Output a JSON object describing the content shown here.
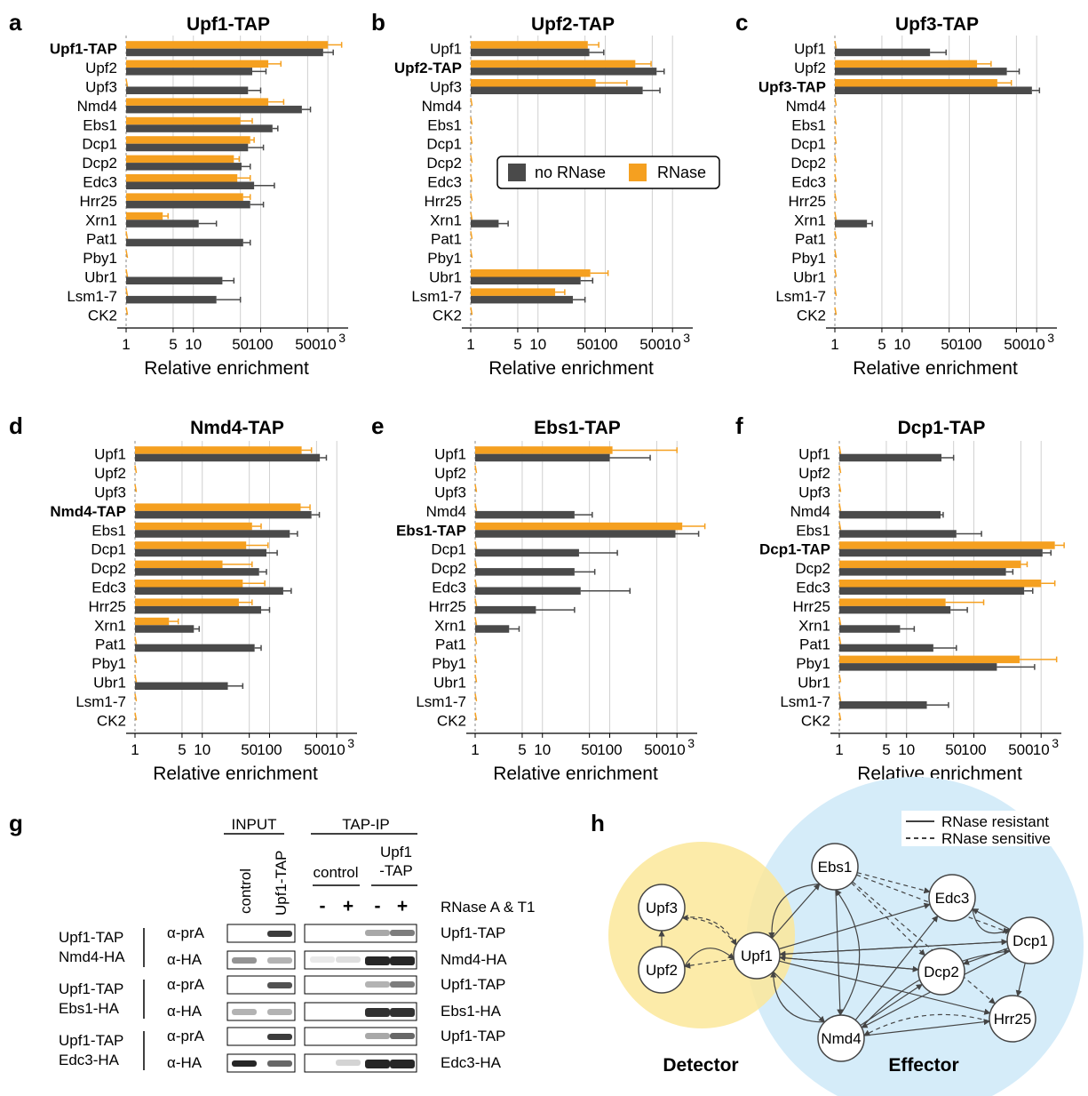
{
  "colors": {
    "noRNase": "#4a4a4a",
    "RNase": "#f5a020",
    "detector": "#fce79a",
    "effector": "#d5ecf9"
  },
  "panels": [
    {
      "letter": "a",
      "title": "Upf1-TAP",
      "bait": 0,
      "xlabel": "Relative enrichment",
      "rnase": [
        1000,
        130,
        0,
        130,
        50,
        70,
        40,
        45,
        55,
        3.5,
        0,
        0,
        0,
        0,
        0
      ],
      "rnaseErr": [
        1600,
        200,
        0,
        220,
        75,
        80,
        48,
        70,
        70,
        4.2,
        0,
        0,
        0,
        0,
        0
      ],
      "norase": [
        850,
        75,
        65,
        410,
        150,
        65,
        52,
        80,
        70,
        12,
        55,
        0,
        27,
        22,
        0
      ],
      "noraseErr": [
        1200,
        120,
        100,
        550,
        180,
        110,
        70,
        160,
        110,
        22,
        70,
        0,
        40,
        50,
        0
      ]
    },
    {
      "letter": "b",
      "title": "Upf2-TAP",
      "bait": 1,
      "xlabel": "Relative enrichment",
      "rnase": [
        55,
        280,
        72,
        0,
        0,
        0,
        0,
        0,
        0,
        0,
        0,
        0,
        60,
        18,
        0
      ],
      "rnaseErr": [
        80,
        480,
        210,
        0,
        0,
        0,
        0,
        0,
        0,
        0,
        0,
        0,
        110,
        25,
        0
      ],
      "norase": [
        58,
        580,
        360,
        0,
        0,
        0,
        0,
        0,
        0,
        2.6,
        0,
        0,
        43,
        33,
        0
      ],
      "noraseErr": [
        95,
        750,
        650,
        0,
        0,
        0,
        0,
        0,
        0,
        3.6,
        0,
        0,
        65,
        50,
        0
      ]
    },
    {
      "letter": "c",
      "title": "Upf3-TAP",
      "bait": 2,
      "xlabel": "Relative enrichment",
      "rnase": [
        0,
        130,
        260,
        0,
        0,
        0,
        0,
        0,
        0,
        0,
        0,
        0,
        0,
        0,
        0
      ],
      "rnaseErr": [
        0,
        210,
        420,
        0,
        0,
        0,
        0,
        0,
        0,
        0,
        0,
        0,
        0,
        0,
        0
      ],
      "norase": [
        26,
        360,
        850,
        0,
        0,
        0,
        0,
        0,
        0,
        3.0,
        0,
        0,
        0,
        0,
        0
      ],
      "noraseErr": [
        45,
        550,
        1100,
        0,
        0,
        0,
        0,
        0,
        0,
        3.6,
        0,
        0,
        0,
        0,
        0
      ]
    },
    {
      "letter": "d",
      "title": "Nmd4-TAP",
      "bait": 3,
      "xlabel": "Relative enrichment",
      "rnase": [
        300,
        0,
        0,
        290,
        55,
        45,
        20,
        40,
        35,
        3.2,
        0,
        0,
        0,
        0,
        0
      ],
      "rnaseErr": [
        420,
        0,
        0,
        400,
        75,
        95,
        55,
        85,
        55,
        4.4,
        0,
        0,
        0,
        0,
        0
      ],
      "norase": [
        560,
        0,
        0,
        420,
        200,
        90,
        70,
        160,
        75,
        7.5,
        60,
        0,
        24,
        0,
        0
      ],
      "noraseErr": [
        700,
        0,
        0,
        550,
        260,
        130,
        90,
        210,
        100,
        9,
        75,
        0,
        40,
        0,
        0
      ]
    },
    {
      "letter": "e",
      "title": "Ebs1-TAP",
      "bait": 4,
      "xlabel": "Relative enrichment",
      "rnase": [
        110,
        0,
        0,
        0,
        1200,
        0,
        0,
        0,
        0,
        0,
        0,
        0,
        0,
        0,
        0
      ],
      "rnaseErr": [
        1000,
        0,
        0,
        0,
        2600,
        0,
        0,
        0,
        0,
        0,
        0,
        0,
        0,
        0,
        0
      ],
      "norase": [
        100,
        0,
        0,
        30,
        950,
        35,
        30,
        37,
        8,
        3.2,
        0,
        0,
        0,
        0,
        0
      ],
      "noraseErr": [
        400,
        0,
        0,
        55,
        2100,
        130,
        60,
        200,
        30,
        4.5,
        0,
        0,
        0,
        0,
        0
      ]
    },
    {
      "letter": "f",
      "title": "Dcp1-TAP",
      "bait": 5,
      "xlabel": "Relative enrichment",
      "rnase": [
        0,
        0,
        0,
        0,
        0,
        1600,
        500,
        1000,
        38,
        0,
        0,
        480,
        0,
        0,
        0
      ],
      "rnaseErr": [
        0,
        0,
        0,
        0,
        0,
        2200,
        620,
        1600,
        140,
        0,
        0,
        1700,
        0,
        0,
        0
      ],
      "norase": [
        33,
        0,
        0,
        32,
        55,
        1050,
        300,
        560,
        45,
        8,
        25,
        220,
        0,
        20,
        0
      ],
      "noraseErr": [
        50,
        0,
        0,
        35,
        130,
        1400,
        380,
        750,
        80,
        13,
        55,
        800,
        0,
        42,
        0
      ]
    }
  ],
  "categories": [
    "Upf1",
    "Upf2",
    "Upf3",
    "Nmd4",
    "Ebs1",
    "Dcp1",
    "Dcp2",
    "Edc3",
    "Hrr25",
    "Xrn1",
    "Pat1",
    "Pby1",
    "Ubr1",
    "Lsm1-7",
    "CK2"
  ],
  "baitLabels": [
    "Upf1-TAP",
    "Upf2-TAP",
    "Upf3-TAP",
    "Nmd4-TAP",
    "Ebs1-TAP",
    "Dcp1-TAP"
  ],
  "ticks": [
    {
      "v": 1,
      "l": "1"
    },
    {
      "v": 5,
      "l": "5"
    },
    {
      "v": 10,
      "l": "10"
    },
    {
      "v": 50,
      "l": "50"
    },
    {
      "v": 100,
      "l": "100"
    },
    {
      "v": 500,
      "l": "500"
    },
    {
      "v": 1000,
      "l": "10"
    }
  ],
  "tickSup": "3",
  "legend": {
    "noRNase": "no RNase",
    "RNase": "RNase"
  },
  "blot": {
    "letter": "g",
    "input": "INPUT",
    "tapip": "TAP-IP",
    "lanes": {
      "control": "control",
      "upf1tap": "Upf1-TAP",
      "ipcontrol": "control",
      "ipupf1a": "Upf1",
      "ipupf1b": "-TAP"
    },
    "rnase": "RNase A & T1",
    "minus": "-",
    "plus": "+",
    "groups": [
      {
        "strains": [
          "Upf1-TAP",
          "Nmd4-HA"
        ],
        "rows": [
          {
            "ab": "α-prA",
            "name": "Upf1-TAP",
            "inp": [
              0,
              0.9
            ],
            "ip": [
              0,
              0,
              0.4,
              0.6
            ]
          },
          {
            "ab": "α-HA",
            "name": "Nmd4-HA",
            "inp": [
              0.5,
              0.35
            ],
            "ip": [
              0.1,
              0.15,
              1,
              1
            ]
          }
        ]
      },
      {
        "strains": [
          "Upf1-TAP",
          "Ebs1-HA"
        ],
        "rows": [
          {
            "ab": "α-prA",
            "name": "Upf1-TAP",
            "inp": [
              0,
              0.8
            ],
            "ip": [
              0,
              0,
              0.35,
              0.6
            ]
          },
          {
            "ab": "α-HA",
            "name": "Ebs1-HA",
            "inp": [
              0.35,
              0.35
            ],
            "ip": [
              0,
              0,
              0.95,
              0.95
            ]
          }
        ]
      },
      {
        "strains": [
          "Upf1-TAP",
          "Edc3-HA"
        ],
        "rows": [
          {
            "ab": "α-prA",
            "name": "Upf1-TAP",
            "inp": [
              0,
              0.9
            ],
            "ip": [
              0,
              0,
              0.4,
              0.7
            ]
          },
          {
            "ab": "α-HA",
            "name": "Edc3-HA",
            "inp": [
              1,
              0.7
            ],
            "ip": [
              0,
              0.2,
              1,
              1
            ]
          }
        ]
      }
    ]
  },
  "network": {
    "letter": "h",
    "legendSolid": "RNase resistant",
    "legendDashed": "RNase sensitive",
    "detector": "Detector",
    "effector": "Effector",
    "nodes": [
      {
        "id": "Upf3",
        "label": "Upf3"
      },
      {
        "id": "Upf2",
        "label": "Upf2"
      },
      {
        "id": "Upf1",
        "label": "Upf1"
      },
      {
        "id": "Ebs1",
        "label": "Ebs1"
      },
      {
        "id": "Edc3",
        "label": "Edc3"
      },
      {
        "id": "Dcp1",
        "label": "Dcp1"
      },
      {
        "id": "Dcp2",
        "label": "Dcp2"
      },
      {
        "id": "Hrr25",
        "label": "Hrr25"
      },
      {
        "id": "Nmd4",
        "label": "Nmd4"
      }
    ]
  }
}
